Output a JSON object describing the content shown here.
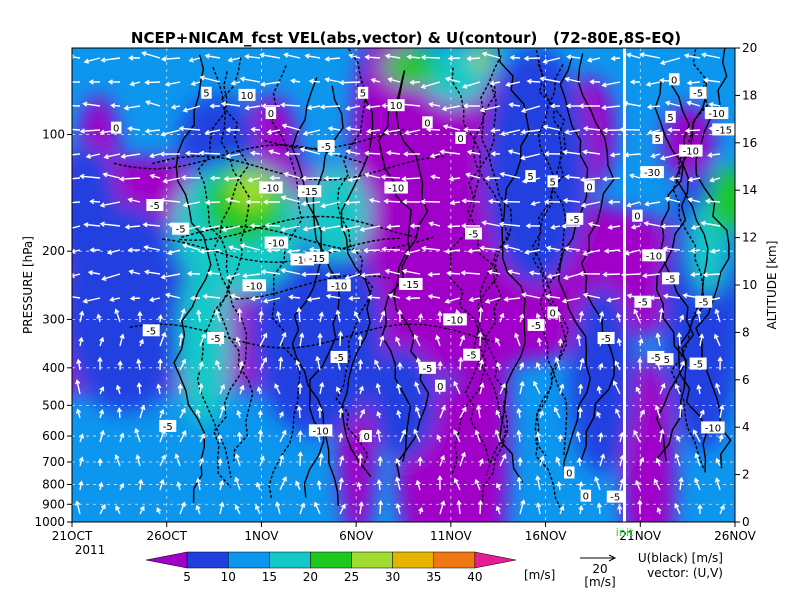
{
  "chart_data": {
    "type": "heatmap",
    "title": "NCEP+NICAM_fcst VEL(abs,vector) & U(contour)   (72-80E,8S-EQ)",
    "xlabel": "",
    "ylabel_left": "PRESSURE [hPa]",
    "ylabel_right": "ALTITUDE [km]",
    "x_ticks": [
      "21OCT",
      "26OCT",
      "1NOV",
      "6NOV",
      "11NOV",
      "16NOV",
      "21NOV",
      "26NOV"
    ],
    "x_year": "2011",
    "x_range_days": [
      0,
      36
    ],
    "pressure_ticks": [
      100,
      200,
      300,
      400,
      500,
      600,
      700,
      800,
      900,
      1000
    ],
    "pressure_range": [
      1000,
      70
    ],
    "altitude_ticks": [
      0,
      2,
      4,
      6,
      8,
      10,
      12,
      14,
      16,
      18,
      20
    ],
    "altitude_range_km": [
      0,
      20
    ],
    "init_label": "init",
    "init_day": 30,
    "colorbar": {
      "ticks": [
        "5",
        "10",
        "15",
        "20",
        "25",
        "30",
        "35",
        "40"
      ],
      "unit": "[m/s]",
      "colors": [
        "#a000c8",
        "#2040e0",
        "#0c96ee",
        "#14c8c8",
        "#1ec81e",
        "#a0dc32",
        "#e6b400",
        "#f07814",
        "#e61e96"
      ]
    },
    "vector_ref": {
      "value": "20",
      "unit": "[m/s]"
    },
    "legend_text": [
      "U(black) [m/s]",
      "vector: (U,V)"
    ],
    "contour_labels": [
      {
        "text": "5",
        "day": 7.3,
        "p": 78
      },
      {
        "text": "10",
        "day": 9.5,
        "p": 79
      },
      {
        "text": "5",
        "day": 15.8,
        "p": 78
      },
      {
        "text": "10",
        "day": 17.6,
        "p": 84
      },
      {
        "text": "0",
        "day": 10.8,
        "p": 88
      },
      {
        "text": "0",
        "day": 2.4,
        "p": 96
      },
      {
        "text": "-5",
        "day": 13.8,
        "p": 107
      },
      {
        "text": "0",
        "day": 19.3,
        "p": 93
      },
      {
        "text": "0",
        "day": 21.1,
        "p": 102
      },
      {
        "text": "5",
        "day": 24.9,
        "p": 128
      },
      {
        "text": "5",
        "day": 26.1,
        "p": 132
      },
      {
        "text": "0",
        "day": 28.1,
        "p": 136
      },
      {
        "text": "-10",
        "day": 10.8,
        "p": 137
      },
      {
        "text": "-15",
        "day": 12.9,
        "p": 140
      },
      {
        "text": "-10",
        "day": 17.6,
        "p": 137
      },
      {
        "text": "-5",
        "day": 4.5,
        "p": 152
      },
      {
        "text": "-5",
        "day": 5.9,
        "p": 175
      },
      {
        "text": "-10",
        "day": 11.1,
        "p": 190
      },
      {
        "text": "-5",
        "day": 27.3,
        "p": 165
      },
      {
        "text": "0",
        "day": 30.7,
        "p": 162
      },
      {
        "text": "-5",
        "day": 21.8,
        "p": 180
      },
      {
        "text": "-10",
        "day": 12.5,
        "p": 210
      },
      {
        "text": "-15",
        "day": 13.3,
        "p": 208
      },
      {
        "text": "-10",
        "day": 9.9,
        "p": 245
      },
      {
        "text": "-10",
        "day": 14.5,
        "p": 245
      },
      {
        "text": "-15",
        "day": 18.4,
        "p": 243
      },
      {
        "text": "-5",
        "day": 31.0,
        "p": 270
      },
      {
        "text": "-10",
        "day": 20.8,
        "p": 300
      },
      {
        "text": "-5",
        "day": 4.3,
        "p": 320
      },
      {
        "text": "-5",
        "day": 7.8,
        "p": 335
      },
      {
        "text": "-5",
        "day": 14.5,
        "p": 375
      },
      {
        "text": "-5",
        "day": 25.2,
        "p": 310
      },
      {
        "text": "-5",
        "day": 29.0,
        "p": 335
      },
      {
        "text": "-5",
        "day": 32.2,
        "p": 380
      },
      {
        "text": "-5",
        "day": 21.7,
        "p": 370
      },
      {
        "text": "-5",
        "day": 19.3,
        "p": 400
      },
      {
        "text": "0",
        "day": 20.0,
        "p": 445
      },
      {
        "text": "0",
        "day": 26.1,
        "p": 288
      },
      {
        "text": "-5",
        "day": 5.2,
        "p": 565
      },
      {
        "text": "-10",
        "day": 13.5,
        "p": 580
      },
      {
        "text": "0",
        "day": 16.0,
        "p": 600
      },
      {
        "text": "0",
        "day": 27.0,
        "p": 745
      },
      {
        "text": "0",
        "day": 27.9,
        "p": 855
      },
      {
        "text": "-5",
        "day": 29.5,
        "p": 860
      },
      {
        "text": "-10",
        "day": 34.8,
        "p": 570
      },
      {
        "text": "0",
        "day": 32.7,
        "p": 72
      },
      {
        "text": "-5",
        "day": 34.0,
        "p": 78
      },
      {
        "text": "-10",
        "day": 35.0,
        "p": 88
      },
      {
        "text": "5",
        "day": 32.5,
        "p": 90
      },
      {
        "text": "-15",
        "day": 35.4,
        "p": 97
      },
      {
        "text": "5",
        "day": 31.8,
        "p": 102
      },
      {
        "text": "-10",
        "day": 33.6,
        "p": 110
      },
      {
        "text": "-30",
        "day": 31.5,
        "p": 125
      },
      {
        "text": "-10",
        "day": 31.6,
        "p": 205
      },
      {
        "text": "-5",
        "day": 32.5,
        "p": 235
      },
      {
        "text": "-5",
        "day": 34.3,
        "p": 270
      },
      {
        "text": "-5",
        "day": 31.7,
        "p": 375
      },
      {
        "text": "-5",
        "day": 34.0,
        "p": 390
      }
    ]
  }
}
